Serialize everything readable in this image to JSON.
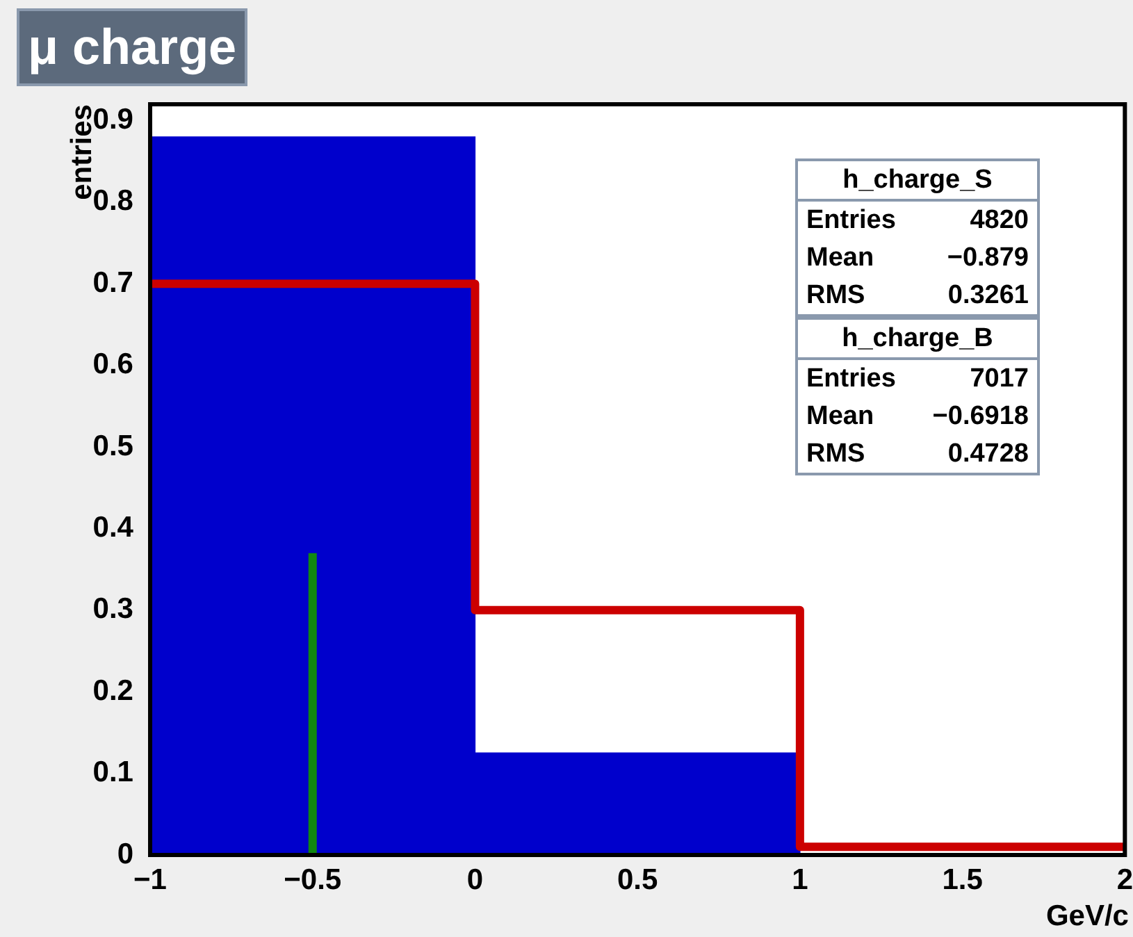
{
  "chart_data": {
    "type": "histogram",
    "title": "μ charge",
    "xlabel": "GeV/c",
    "ylabel": "entries",
    "bins": [
      -1,
      0,
      1,
      2
    ],
    "series": [
      {
        "color": "#0000cc",
        "values": [
          0.88,
          0.125,
          0
        ]
      },
      {
        "type": "step",
        "color": "#cc0000",
        "x": [
          -1,
          0,
          1,
          2
        ],
        "values": [
          0.7,
          0.3,
          0.01,
          0.01
        ]
      },
      {
        "type": "line",
        "color": "#118811",
        "x": [
          -0.5,
          -0.5
        ],
        "values": [
          0,
          0.37
        ]
      }
    ],
    "xlim": [
      -1,
      2
    ],
    "xticks": [
      {
        "value": -1,
        "label": "−1"
      },
      {
        "value": -0.5,
        "label": "−0.5"
      },
      0,
      0.5,
      1,
      1.5,
      2
    ],
    "ylim": [
      0,
      0.92
    ],
    "yticks": [
      0,
      0.1,
      0.2,
      0.3,
      0.4,
      0.5,
      0.6,
      0.7,
      0.8,
      0.9
    ],
    "annotations": [
      "h_charge_S",
      "Entries 4820",
      "Mean −0.879",
      "RMS 0.3261",
      "h_charge_B",
      "Entries 7017",
      "Mean −0.6918",
      "RMS 0.4728"
    ]
  }
}
